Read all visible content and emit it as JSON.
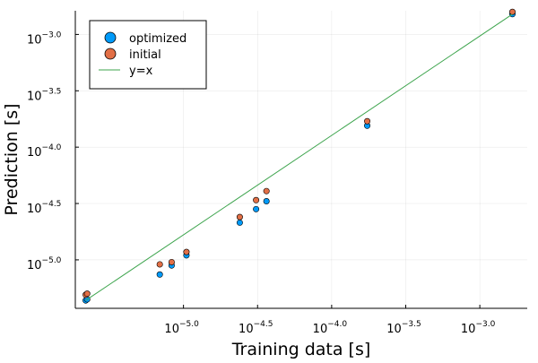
{
  "chart_data": {
    "type": "scatter",
    "title": "",
    "xlabel": "Training data [s]",
    "ylabel": "Prediction [s]",
    "xscale": "log10",
    "yscale": "log10",
    "xlim_log10": [
      -5.73,
      -2.68
    ],
    "ylim_log10": [
      -5.43,
      -2.79
    ],
    "x_ticks": [
      {
        "base": "10",
        "exponent": "−5.0",
        "value_log10": -5.0
      },
      {
        "base": "10",
        "exponent": "−4.5",
        "value_log10": -4.5
      },
      {
        "base": "10",
        "exponent": "−4.0",
        "value_log10": -4.0
      },
      {
        "base": "10",
        "exponent": "−3.5",
        "value_log10": -3.5
      },
      {
        "base": "10",
        "exponent": "−3.0",
        "value_log10": -3.0
      }
    ],
    "y_ticks": [
      {
        "base": "10",
        "exponent": "−5.0",
        "value_log10": -5.0
      },
      {
        "base": "10",
        "exponent": "−4.5",
        "value_log10": -4.5
      },
      {
        "base": "10",
        "exponent": "−4.0",
        "value_log10": -4.0
      },
      {
        "base": "10",
        "exponent": "−3.5",
        "value_log10": -3.5
      },
      {
        "base": "10",
        "exponent": "−3.0",
        "value_log10": -3.0
      }
    ],
    "grid": true,
    "legend_position": "top-left",
    "series": [
      {
        "name": "optimized",
        "kind": "scatter",
        "color": "#009af9",
        "x_log10": [
          -5.66,
          -5.65,
          -5.16,
          -5.08,
          -4.98,
          -4.62,
          -4.51,
          -4.44,
          -3.76,
          -2.78
        ],
        "y_log10": [
          -5.36,
          -5.35,
          -5.13,
          -5.05,
          -4.96,
          -4.67,
          -4.55,
          -4.48,
          -3.81,
          -2.82
        ]
      },
      {
        "name": "initial",
        "kind": "scatter",
        "color": "#e26f46",
        "x_log10": [
          -5.66,
          -5.65,
          -5.16,
          -5.08,
          -4.98,
          -4.62,
          -4.51,
          -4.44,
          -3.76,
          -2.78
        ],
        "y_log10": [
          -5.31,
          -5.3,
          -5.04,
          -5.02,
          -4.93,
          -4.62,
          -4.47,
          -4.39,
          -3.77,
          -2.8
        ]
      },
      {
        "name": "y=x",
        "kind": "line",
        "color": "#3da44d",
        "x_log10": [
          -5.66,
          -2.78
        ],
        "y_log10": [
          -5.36,
          -2.82
        ]
      }
    ]
  }
}
